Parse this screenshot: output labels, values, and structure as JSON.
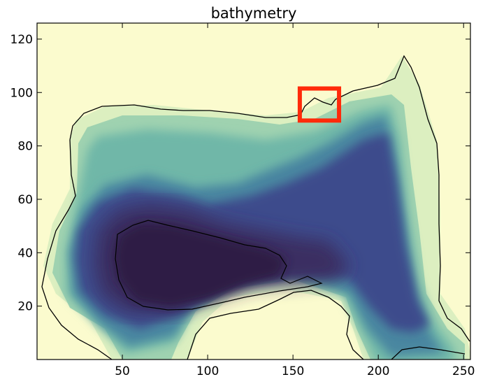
{
  "chart_data": {
    "type": "heatmap",
    "title": "bathymetry",
    "xlabel": "",
    "ylabel": "",
    "xlim": [
      0,
      254
    ],
    "ylim": [
      0,
      126
    ],
    "x_ticks": [
      50,
      100,
      150,
      200,
      250
    ],
    "y_ticks": [
      20,
      40,
      60,
      80,
      100,
      120
    ],
    "colormap": "deep (light yellow to dark purple)",
    "grid": false,
    "colorbar": false,
    "contour_color": "#000000",
    "land_color": "#fbfbce",
    "highlight_box": {
      "x": [
        154,
        177
      ],
      "y": [
        89.5,
        101.5
      ],
      "color": "#ff2a0a"
    }
  },
  "colors": {
    "land": "#fbfbce",
    "shallow": "#dcefc0",
    "shelf": "#9fd2b0",
    "slope": "#6fb7a8",
    "mid": "#4a86a0",
    "deep": "#3c4c8c",
    "abyss": "#3b2e62",
    "trench": "#2e1f44",
    "highlight": "#ff2a0a"
  }
}
